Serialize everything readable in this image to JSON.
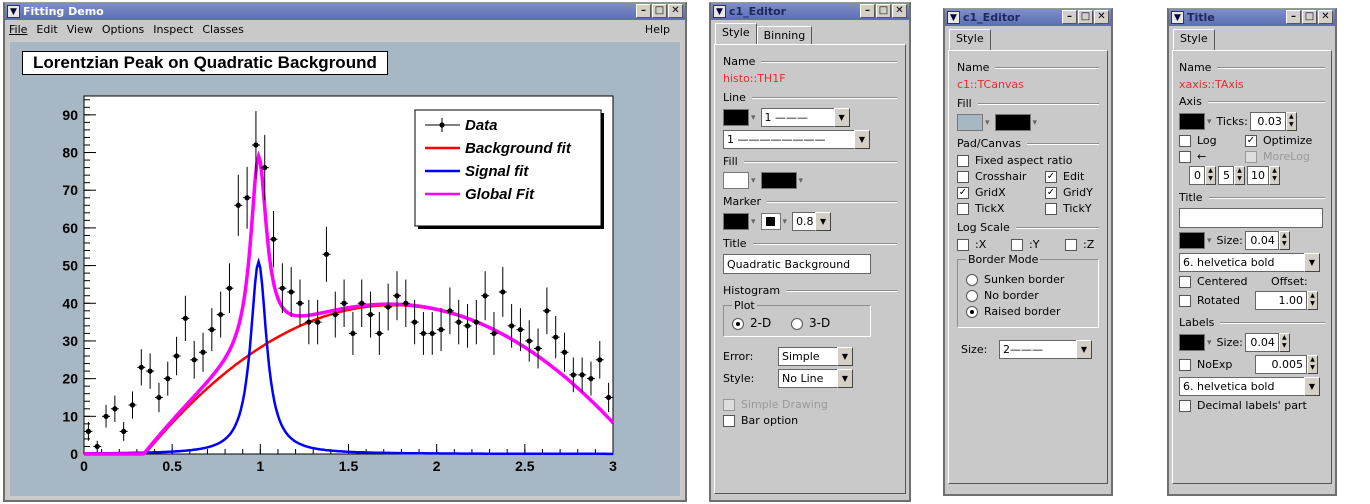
{
  "win1": {
    "title": "Fitting Demo",
    "menus": [
      "File",
      "Edit",
      "View",
      "Options",
      "Inspect",
      "Classes"
    ],
    "help": "Help",
    "canvas_title": "Lorentzian Peak on Quadratic Background"
  },
  "chart_data": {
    "type": "line",
    "title": "Lorentzian Peak on Quadratic Background",
    "xlim": [
      0,
      3
    ],
    "ylim": [
      0,
      95
    ],
    "xticks": [
      "0",
      "0.5",
      "1",
      "1.5",
      "2",
      "2.5",
      "3"
    ],
    "yticks": [
      "0",
      "10",
      "20",
      "30",
      "40",
      "50",
      "60",
      "70",
      "80",
      "90"
    ],
    "legend": [
      "Data",
      "Background fit",
      "Signal fit",
      "Global Fit"
    ],
    "legend_pos": "top-right",
    "colors": {
      "data": "#000000",
      "background": "#ff0000",
      "signal": "#0000ff",
      "global": "#ff00ff"
    },
    "data": {
      "x": [
        0.025,
        0.075,
        0.125,
        0.175,
        0.225,
        0.275,
        0.325,
        0.375,
        0.425,
        0.475,
        0.525,
        0.575,
        0.625,
        0.675,
        0.725,
        0.775,
        0.825,
        0.875,
        0.925,
        0.975,
        1.025,
        1.075,
        1.125,
        1.175,
        1.225,
        1.275,
        1.325,
        1.375,
        1.425,
        1.475,
        1.525,
        1.575,
        1.625,
        1.675,
        1.725,
        1.775,
        1.825,
        1.875,
        1.925,
        1.975,
        2.025,
        2.075,
        2.125,
        2.175,
        2.225,
        2.275,
        2.325,
        2.375,
        2.425,
        2.475,
        2.525,
        2.575,
        2.625,
        2.675,
        2.725,
        2.775,
        2.825,
        2.875,
        2.925,
        2.975
      ],
      "y": [
        6,
        2,
        10,
        12,
        6,
        13,
        23,
        22,
        15,
        20,
        26,
        36,
        25,
        27,
        33,
        37,
        44,
        66,
        68,
        82,
        76,
        57,
        44,
        43,
        40,
        35,
        35,
        53,
        37,
        40,
        32,
        40,
        37,
        32,
        39,
        42,
        40,
        35,
        32,
        32,
        33,
        38,
        35,
        34,
        35,
        42,
        32,
        43,
        34,
        33,
        30,
        28,
        38,
        31,
        27,
        21,
        21,
        20,
        25,
        15
      ],
      "err": [
        2.5,
        1.5,
        3,
        3.5,
        2.5,
        3.6,
        4.8,
        4.7,
        3.9,
        4.5,
        5.1,
        6,
        5,
        5.2,
        5.7,
        6.1,
        6.6,
        8.1,
        8.2,
        9,
        8.7,
        7.5,
        6.6,
        6.6,
        6.3,
        5.9,
        5.9,
        7.3,
        6.1,
        6.3,
        5.7,
        6.3,
        6.1,
        5.7,
        6.2,
        6.5,
        6.3,
        5.9,
        5.7,
        5.7,
        5.7,
        6.2,
        5.9,
        5.8,
        5.9,
        6.5,
        5.7,
        6.6,
        5.8,
        5.7,
        5.5,
        5.3,
        6.2,
        5.6,
        5.2,
        4.6,
        4.6,
        4.5,
        5,
        3.9
      ]
    }
  },
  "ed1": {
    "title": "c1_Editor",
    "tabs": [
      "Style",
      "Binning"
    ],
    "name_label": "Name",
    "name": "histo::TH1F",
    "line": "Line",
    "width_val": "1",
    "style_val": "1",
    "fill": "Fill",
    "marker": "Marker",
    "msize": "0.8",
    "title_label": "Title",
    "title_val": "Quadratic Background",
    "histogram": "Histogram",
    "plot": "Plot",
    "r2d": "2-D",
    "r3d": "3-D",
    "error_label": "Error:",
    "error_val": "Simple",
    "style_label": "Style:",
    "style_val2": "No Line",
    "simple": "Simple Drawing",
    "bar": "Bar option"
  },
  "ed2": {
    "title": "c1_Editor",
    "tab": "Style",
    "name_label": "Name",
    "name": "c1::TCanvas",
    "fill": "Fill",
    "padcanvas": "Pad/Canvas",
    "fixed": "Fixed aspect ratio",
    "crosshair": "Crosshair",
    "edit": "Edit",
    "gridx": "GridX",
    "gridy": "GridY",
    "tickx": "TickX",
    "ticky": "TickY",
    "logscale": "Log Scale",
    "lx": ":X",
    "ly": ":Y",
    "lz": ":Z",
    "border": "Border Mode",
    "sunken": "Sunken border",
    "noborder": "No border",
    "raised": "Raised border",
    "size": "Size:",
    "size_val": "2"
  },
  "ed3": {
    "title": "Title",
    "tab": "Style",
    "name_label": "Name",
    "name": "xaxis::TAxis",
    "axis": "Axis",
    "ticks": "Ticks:",
    "ticks_val": "0.03",
    "log": "Log",
    "optimize": "Optimize",
    "arrow": "←",
    "morelog": "MoreLog",
    "div1": "0",
    "div2": "5",
    "div3": "10",
    "size": "Size:",
    "size_val": "0.04",
    "font": "6. helvetica bold",
    "centered": "Centered",
    "offset": "Offset:",
    "rotated": "Rotated",
    "offset_val": "1.00",
    "labels": "Labels",
    "lsize_val": "0.04",
    "noexp": "NoExp",
    "noexp_val": "0.005",
    "lfont": "6. helvetica bold",
    "decimal": "Decimal labels' part"
  }
}
